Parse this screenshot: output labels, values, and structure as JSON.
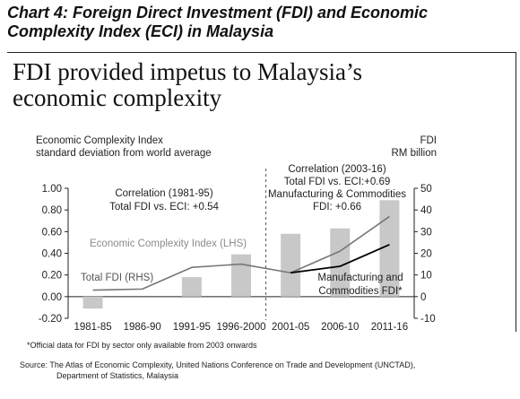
{
  "heading": {
    "line1": "Chart 4: Foreign Direct Investment (FDI) and Economic",
    "line2": "Complexity Index (ECI) in Malaysia"
  },
  "headline": {
    "line1": "FDI provided impetus to Malaysia’s",
    "line2": "economic complexity"
  },
  "axes": {
    "left_title_line1": "Economic Complexity Index",
    "left_title_line2": "standard deviation from world average",
    "right_title_line1": "FDI",
    "right_title_line2": "RM billion"
  },
  "annotations": {
    "corr1_line1": "Correlation (1981-95)",
    "corr1_line2": "Total FDI vs. ECI: +0.54",
    "corr2_line1": "Correlation (2003-16)",
    "corr2_line2": "Total FDI vs. ECI:+0.69",
    "corr2_line3": "Manufacturing & Commodities",
    "corr2_line4": "FDI: +0.66",
    "eci_label": "Economic Complexity Index (LHS)",
    "fdi_label": "Total FDI (RHS)",
    "mfg_label_line1": "Manufacturing and",
    "mfg_label_line2": "Commodities FDI*"
  },
  "footnote": "*Official data for FDI by sector only available from 2003 onwards",
  "source_line1": "Source:   The Atlas of Economic Complexity, United Nations Conference on Trade and Development (UNCTAD),",
  "source_line2": "Department of Statistics, Malaysia",
  "colors": {
    "bars": "#c8c8c8",
    "eci_line": "#666666",
    "mfg_line": "#000000",
    "fdi_line": "#777777"
  },
  "chart_data": {
    "type": "bar",
    "categories": [
      "1981-85",
      "1986-90",
      "1991-95",
      "1996-2000",
      "2001-05",
      "2006-10",
      "2011-16"
    ],
    "left_axis": {
      "ylim": [
        -0.2,
        1.0
      ],
      "ticks": [
        "-0.20",
        "0.00",
        "0.20",
        "0.40",
        "0.60",
        "0.80",
        "1.00"
      ],
      "tick_values": [
        -0.2,
        0.0,
        0.2,
        0.4,
        0.6,
        0.8,
        1.0
      ]
    },
    "right_axis": {
      "ylim": [
        -10,
        50
      ],
      "ticks": [
        "-10",
        "0",
        "10",
        "20",
        "30",
        "40",
        "50"
      ],
      "tick_values": [
        -10,
        0,
        10,
        20,
        30,
        40,
        50
      ]
    },
    "series": [
      {
        "name": "Economic Complexity Index (LHS)",
        "kind": "bar",
        "axis": "left",
        "values": [
          -0.11,
          0.0,
          0.18,
          0.39,
          0.58,
          0.63,
          0.89
        ]
      },
      {
        "name": "Total FDI (RHS)",
        "kind": "line",
        "axis": "right",
        "x": [
          "1981-85",
          "1986-90",
          "1991-95",
          "1996-2000",
          "2001-05",
          "2006-10",
          "2011-16"
        ],
        "values": [
          3,
          3.5,
          13.5,
          15,
          11,
          21,
          37
        ]
      },
      {
        "name": "Manufacturing and Commodities FDI*",
        "kind": "line",
        "axis": "right",
        "x": [
          "2001-05",
          "2006-10",
          "2011-16"
        ],
        "values": [
          11,
          14,
          24
        ]
      }
    ],
    "divider_after": "1996-2000"
  }
}
